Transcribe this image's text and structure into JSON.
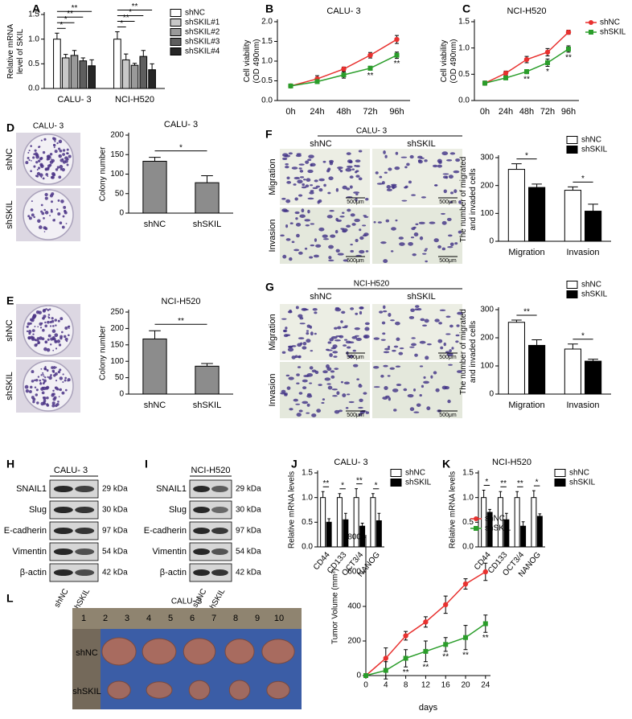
{
  "panel_labels": [
    "A",
    "B",
    "C",
    "D",
    "E",
    "F",
    "G",
    "H",
    "I",
    "J",
    "K",
    "L"
  ],
  "colony_images": [
    {
      "title": "CALU- 3",
      "rows": [
        "shNC",
        "shSKIL"
      ]
    },
    {
      "rows": [
        "shNC",
        "shSKIL"
      ]
    }
  ],
  "transwell_images": [
    {
      "title": "CALU- 3",
      "columns": [
        "shNC",
        "shSKIL"
      ],
      "rows": [
        "Migration",
        "Invasion"
      ],
      "scale_bar": "500μm"
    },
    {
      "title": "NCI-H520",
      "columns": [
        "shNC",
        "shSKIL"
      ],
      "rows": [
        "Migration",
        "Invasion"
      ],
      "scale_bar": "500μm"
    }
  ],
  "western_blots": [
    {
      "title": "CALU- 3",
      "proteins": [
        "SNAIL1",
        "Slug",
        "E-cadherin",
        "Vimentin",
        "β-actin"
      ],
      "sizes": [
        "29 kDa",
        "30 kDa",
        "97 kDa",
        "54 kDa",
        "42 kDa"
      ],
      "lanes": [
        "shNC",
        "shSKIL"
      ]
    },
    {
      "title": "NCI-H520",
      "proteins": [
        "SNAIL1",
        "Slug",
        "E-cadherin",
        "Vimentin",
        "β-actin"
      ],
      "sizes": [
        "29 kDa",
        "30 kDa",
        "97 kDa",
        "54 kDa",
        "42 kDa"
      ],
      "lanes": [
        "shNC",
        "shSKIL"
      ]
    }
  ],
  "tumor_image": {
    "title": "CALU- 3",
    "ruler": [
      "1",
      "2",
      "3",
      "4",
      "5",
      "6",
      "7",
      "8",
      "9",
      "10"
    ],
    "rows": [
      "shNC",
      "shSKIL"
    ]
  },
  "chart_data": [
    {
      "type": "bar",
      "ylabel": "Relative mRNA level of SKIL",
      "categories": [
        "CALU- 3",
        "NCI-H520"
      ],
      "series": [
        {
          "name": "shNC",
          "color": "#ffffff",
          "values": [
            1.0,
            1.0
          ],
          "errors": [
            0.12,
            0.15
          ]
        },
        {
          "name": "shSKIL#1",
          "color": "#c8c8c8",
          "values": [
            0.62,
            0.58
          ],
          "errors": [
            0.07,
            0.12
          ]
        },
        {
          "name": "shSKIL#2",
          "color": "#9a9a9a",
          "values": [
            0.67,
            0.47
          ],
          "errors": [
            0.1,
            0.04
          ]
        },
        {
          "name": "shSKIL#3",
          "color": "#5e5e5e",
          "values": [
            0.56,
            0.65
          ],
          "errors": [
            0.06,
            0.12
          ]
        },
        {
          "name": "shSKIL#4",
          "color": "#262626",
          "values": [
            0.46,
            0.38
          ],
          "errors": [
            0.12,
            0.12
          ]
        }
      ],
      "significance": [
        [
          "*",
          "*",
          "**",
          "**"
        ],
        [
          "*",
          "**",
          "*",
          "**"
        ]
      ],
      "ylim": [
        0,
        1.5
      ],
      "yticks": [
        {
          "value": 0,
          "label": "0.0"
        },
        0.5,
        {
          "value": 1,
          "label": "1.0"
        },
        1.5
      ],
      "legend": "right"
    },
    {
      "type": "line",
      "title": "CALU- 3",
      "ylabel": "Cell viability (OD 490nm)",
      "categories": [
        "0h",
        "24h",
        "48h",
        "72h",
        "96h"
      ],
      "series": [
        {
          "color": "#e8312f",
          "marker": "circle",
          "values": [
            0.37,
            0.55,
            0.8,
            1.15,
            1.55
          ],
          "errors": [
            0.03,
            0.08,
            0.05,
            0.07,
            0.1
          ]
        },
        {
          "color": "#2a9d2a",
          "marker": "square",
          "values": [
            0.37,
            0.48,
            0.65,
            0.82,
            1.15
          ],
          "errors": [
            0.03,
            0.05,
            0.08,
            0.05,
            0.08
          ],
          "annotations": [
            null,
            null,
            null,
            "**",
            "**"
          ]
        }
      ],
      "ylim": [
        0,
        2
      ],
      "yticks": [
        {
          "value": 0,
          "label": "0.0"
        },
        0.5,
        {
          "value": 1,
          "label": "1.0"
        },
        1.5,
        {
          "value": 2,
          "label": "2.0"
        }
      ]
    },
    {
      "type": "line",
      "title": "NCI-H520",
      "ylabel": "Cell viability (OD 490nm)",
      "categories": [
        "0h",
        "24h",
        "48h",
        "72h",
        "96h"
      ],
      "series": [
        {
          "name": "shNC",
          "color": "#e8312f",
          "marker": "circle",
          "values": [
            0.33,
            0.52,
            0.78,
            0.92,
            1.3
          ],
          "errors": [
            0.04,
            0.04,
            0.06,
            0.07,
            0.04
          ]
        },
        {
          "name": "shSKIL",
          "color": "#2a9d2a",
          "marker": "square",
          "values": [
            0.33,
            0.43,
            0.55,
            0.72,
            0.98
          ],
          "errors": [
            0.04,
            0.03,
            0.04,
            0.07,
            0.06
          ],
          "annotations": [
            null,
            null,
            "**",
            "*",
            "**"
          ]
        }
      ],
      "ylim": [
        0,
        1.5
      ],
      "yticks": [
        {
          "value": 0,
          "label": "0.0"
        },
        0.5,
        {
          "value": 1,
          "label": "1.0"
        },
        1.5
      ],
      "legend": "top-right"
    },
    {
      "type": "bar",
      "title": "CALU- 3",
      "ylabel": "Colony number",
      "categories": [
        "shNC",
        "shSKIL"
      ],
      "values": [
        133,
        78
      ],
      "errors": [
        10,
        18
      ],
      "color": "#8c8c8c",
      "significance": "*",
      "ylim": [
        0,
        200
      ],
      "yticks": [
        0,
        50,
        100,
        150,
        200
      ]
    },
    {
      "type": "bar",
      "title": "NCI-H520",
      "ylabel": "Colony number",
      "categories": [
        "shNC",
        "shSKIL"
      ],
      "values": [
        168,
        85
      ],
      "errors": [
        25,
        8
      ],
      "color": "#8c8c8c",
      "significance": "**",
      "ylim": [
        0,
        250
      ],
      "yticks": [
        0,
        50,
        100,
        150,
        200,
        250
      ]
    },
    {
      "type": "bar",
      "ylabel": "The number of migrated and invaded cells",
      "categories": [
        "Migration",
        "Invasion"
      ],
      "series": [
        {
          "name": "shNC",
          "color": "#ffffff",
          "values": [
            258,
            183
          ],
          "errors": [
            20,
            12
          ]
        },
        {
          "name": "shSKIL",
          "color": "#000000",
          "values": [
            193,
            108
          ],
          "errors": [
            12,
            25
          ]
        }
      ],
      "significance": [
        "*",
        "*"
      ],
      "ylim": [
        0,
        300
      ],
      "yticks": [
        0,
        100,
        200,
        300
      ],
      "legend": "top-right"
    },
    {
      "type": "bar",
      "ylabel": "The number of migrated and invaded cells",
      "categories": [
        "Migration",
        "Invasion"
      ],
      "series": [
        {
          "name": "shNC",
          "color": "#ffffff",
          "values": [
            255,
            160
          ],
          "errors": [
            8,
            18
          ]
        },
        {
          "name": "shSKIL",
          "color": "#000000",
          "values": [
            173,
            117
          ],
          "errors": [
            20,
            7
          ]
        }
      ],
      "significance": [
        "**",
        "*"
      ],
      "ylim": [
        0,
        300
      ],
      "yticks": [
        0,
        100,
        200,
        300
      ],
      "legend": "top-right"
    },
    {
      "type": "bar",
      "title": "CALU- 3",
      "ylabel": "Relative mRNA levels",
      "categories": [
        "CD44",
        "CD133",
        "OCT3/4",
        "NANOG"
      ],
      "series": [
        {
          "name": "shNC",
          "color": "#ffffff",
          "values": [
            1.0,
            1.0,
            1.0,
            1.0
          ],
          "errors": [
            0.12,
            0.08,
            0.18,
            0.08
          ]
        },
        {
          "name": "shSKIL",
          "color": "#000000",
          "values": [
            0.5,
            0.55,
            0.42,
            0.53
          ],
          "errors": [
            0.07,
            0.13,
            0.06,
            0.15
          ]
        }
      ],
      "significance": [
        "**",
        "*",
        "**",
        "*"
      ],
      "ylim": [
        0,
        1.5
      ],
      "yticks": [
        {
          "value": 0,
          "label": "0.0"
        },
        0.5,
        {
          "value": 1,
          "label": "1.0"
        },
        1.5
      ],
      "legend": "top-right"
    },
    {
      "type": "bar",
      "title": "NCI-H520",
      "ylabel": "Relative mRNA levels",
      "categories": [
        "CD44",
        "CD133",
        "OCT3/4",
        "NANOG"
      ],
      "series": [
        {
          "name": "shNC",
          "color": "#ffffff",
          "values": [
            1.0,
            1.0,
            1.0,
            1.0
          ],
          "errors": [
            0.15,
            0.12,
            0.12,
            0.14
          ]
        },
        {
          "name": "shSKIL",
          "color": "#000000",
          "values": [
            0.7,
            0.55,
            0.42,
            0.62
          ],
          "errors": [
            0.06,
            0.13,
            0.09,
            0.05
          ]
        }
      ],
      "significance": [
        "*",
        "**",
        "**",
        "*"
      ],
      "ylim": [
        0,
        1.5
      ],
      "yticks": [
        {
          "value": 0,
          "label": "0.0"
        },
        0.5,
        {
          "value": 1,
          "label": "1.0"
        },
        1.5
      ],
      "legend": "top-right"
    },
    {
      "type": "line",
      "xlabel": "days",
      "ylabel": "Tumor Volume (mm³)",
      "x": [
        0,
        4,
        8,
        12,
        16,
        20,
        24
      ],
      "xlim": [
        0,
        25
      ],
      "xticks": [
        0,
        4,
        8,
        12,
        16,
        20,
        24
      ],
      "series": [
        {
          "name": "shNC",
          "color": "#e8312f",
          "marker": "circle",
          "values": [
            0,
            100,
            230,
            310,
            410,
            530,
            600
          ],
          "errors": [
            0,
            60,
            25,
            30,
            50,
            30,
            50
          ]
        },
        {
          "name": "shSKIL",
          "color": "#2a9d2a",
          "marker": "square",
          "values": [
            0,
            30,
            100,
            140,
            180,
            220,
            300
          ],
          "errors": [
            0,
            50,
            50,
            60,
            40,
            70,
            50
          ],
          "annotations": [
            null,
            null,
            "**",
            "**",
            "**",
            "**",
            "**"
          ]
        }
      ],
      "ylim": [
        0,
        800
      ],
      "yticks": [
        0,
        200,
        400,
        600,
        800
      ],
      "legend": "top-right"
    }
  ]
}
